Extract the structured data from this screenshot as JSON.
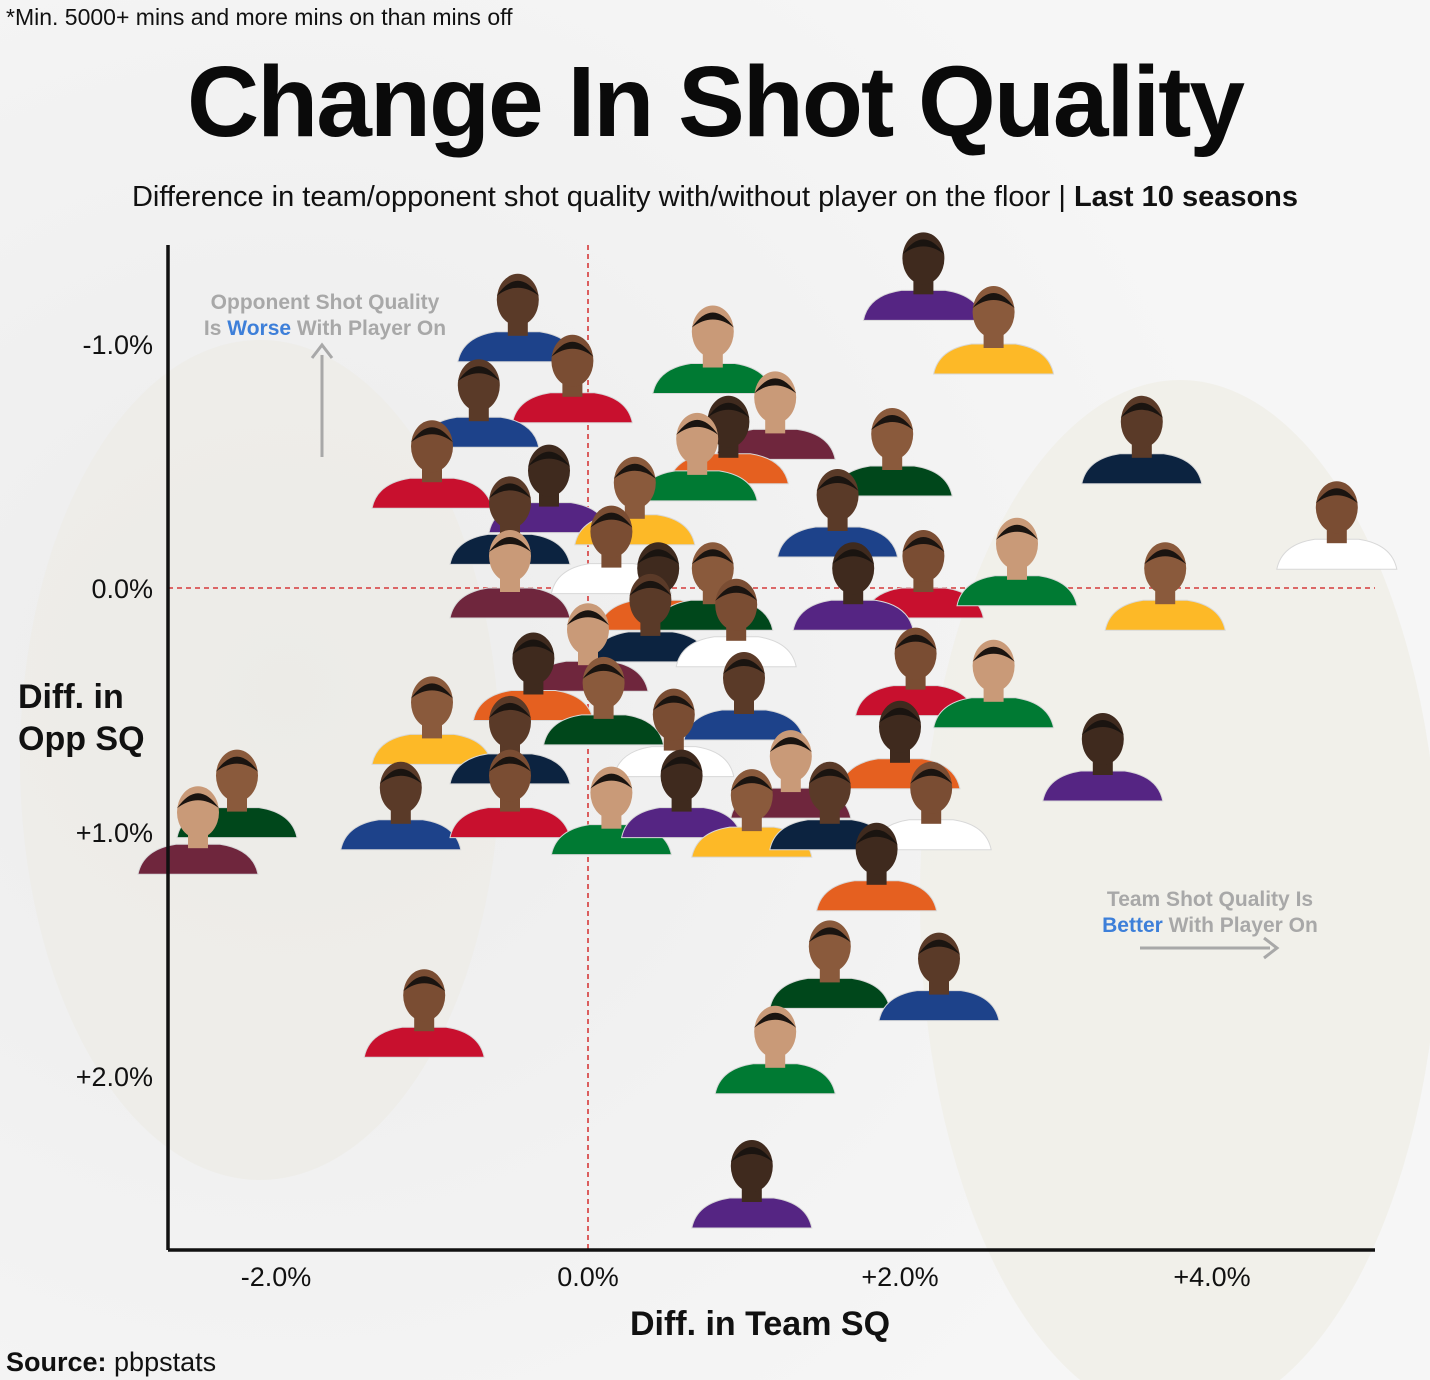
{
  "footnote": "*Min. 5000+ mins and more mins on than mins off",
  "chart_data": {
    "type": "scatter",
    "title": "Change In Shot Quality",
    "subtitle": "Difference in team/opponent shot quality with/without player on the floor |",
    "subtitle_bold": "Last 10 seasons",
    "xlabel": "Diff. in Team SQ",
    "ylabel_line1": "Diff. in",
    "ylabel_line2": "Opp SQ",
    "x_ticks": [
      {
        "v": -2.0,
        "label": "-2.0%"
      },
      {
        "v": 0.0,
        "label": "0.0%"
      },
      {
        "v": 2.0,
        "label": "+2.0%"
      },
      {
        "v": 4.0,
        "label": "+4.0%"
      }
    ],
    "y_ticks": [
      {
        "v": -1.0,
        "label": "-1.0%"
      },
      {
        "v": 0.0,
        "label": "0.0%"
      },
      {
        "v": 1.0,
        "label": "+1.0%"
      },
      {
        "v": 2.0,
        "label": "+2.0%"
      }
    ],
    "xlim": [
      -2.75,
      5.1
    ],
    "ylim": [
      -1.4,
      2.7
    ],
    "y_inverted": true,
    "reference_lines": {
      "x": 0.0,
      "y": 0.0,
      "color": "#d63a3a",
      "style": "dashed"
    },
    "annotations": {
      "top": {
        "line1": "Opponent Shot Quality",
        "line2_pre": "Is ",
        "line2_hl": "Worse",
        "line2_post": " With Player On"
      },
      "bottom": {
        "line1": "Team Shot Quality Is",
        "line2_hl": "Better",
        "line2_post": " With Player On"
      }
    },
    "series": [
      {
        "points": [
          {
            "x": -0.45,
            "y": -1.05
          },
          {
            "x": -0.1,
            "y": -0.8
          },
          {
            "x": 0.8,
            "y": -0.92
          },
          {
            "x": 2.15,
            "y": -1.22
          },
          {
            "x": 2.6,
            "y": -1.0
          },
          {
            "x": 3.55,
            "y": -0.55
          },
          {
            "x": 4.8,
            "y": -0.2
          },
          {
            "x": 1.2,
            "y": -0.65
          },
          {
            "x": 0.9,
            "y": -0.55
          },
          {
            "x": 1.95,
            "y": -0.5
          },
          {
            "x": -0.7,
            "y": -0.7
          },
          {
            "x": -1.0,
            "y": -0.45
          },
          {
            "x": 0.7,
            "y": -0.48
          },
          {
            "x": -0.25,
            "y": -0.35
          },
          {
            "x": 0.3,
            "y": -0.3
          },
          {
            "x": -0.5,
            "y": -0.22
          },
          {
            "x": 0.15,
            "y": -0.1
          },
          {
            "x": -0.5,
            "y": 0.0
          },
          {
            "x": 0.45,
            "y": 0.05
          },
          {
            "x": 0.8,
            "y": 0.05
          },
          {
            "x": 1.6,
            "y": -0.25
          },
          {
            "x": 2.15,
            "y": 0.0
          },
          {
            "x": 2.75,
            "y": -0.05
          },
          {
            "x": 1.7,
            "y": 0.05
          },
          {
            "x": 3.7,
            "y": 0.05
          },
          {
            "x": 0.4,
            "y": 0.18
          },
          {
            "x": 0.95,
            "y": 0.2
          },
          {
            "x": 0.0,
            "y": 0.3
          },
          {
            "x": -0.35,
            "y": 0.42
          },
          {
            "x": 0.1,
            "y": 0.52
          },
          {
            "x": 1.0,
            "y": 0.5
          },
          {
            "x": 2.1,
            "y": 0.4
          },
          {
            "x": 2.6,
            "y": 0.45
          },
          {
            "x": 3.3,
            "y": 0.75
          },
          {
            "x": -1.0,
            "y": 0.6
          },
          {
            "x": -0.5,
            "y": 0.68
          },
          {
            "x": 0.55,
            "y": 0.65
          },
          {
            "x": 1.3,
            "y": 0.82
          },
          {
            "x": 2.0,
            "y": 0.7
          },
          {
            "x": -2.25,
            "y": 0.9
          },
          {
            "x": -1.2,
            "y": 0.95
          },
          {
            "x": -0.5,
            "y": 0.9
          },
          {
            "x": 0.15,
            "y": 0.97
          },
          {
            "x": 0.6,
            "y": 0.9
          },
          {
            "x": 1.05,
            "y": 0.98
          },
          {
            "x": 1.55,
            "y": 0.95
          },
          {
            "x": 2.2,
            "y": 0.95
          },
          {
            "x": -2.5,
            "y": 1.05
          },
          {
            "x": 1.85,
            "y": 1.2
          },
          {
            "x": 1.55,
            "y": 1.6
          },
          {
            "x": 2.25,
            "y": 1.65
          },
          {
            "x": -1.05,
            "y": 1.8
          },
          {
            "x": 1.2,
            "y": 1.95
          },
          {
            "x": 1.05,
            "y": 2.5
          }
        ]
      }
    ]
  }
}
